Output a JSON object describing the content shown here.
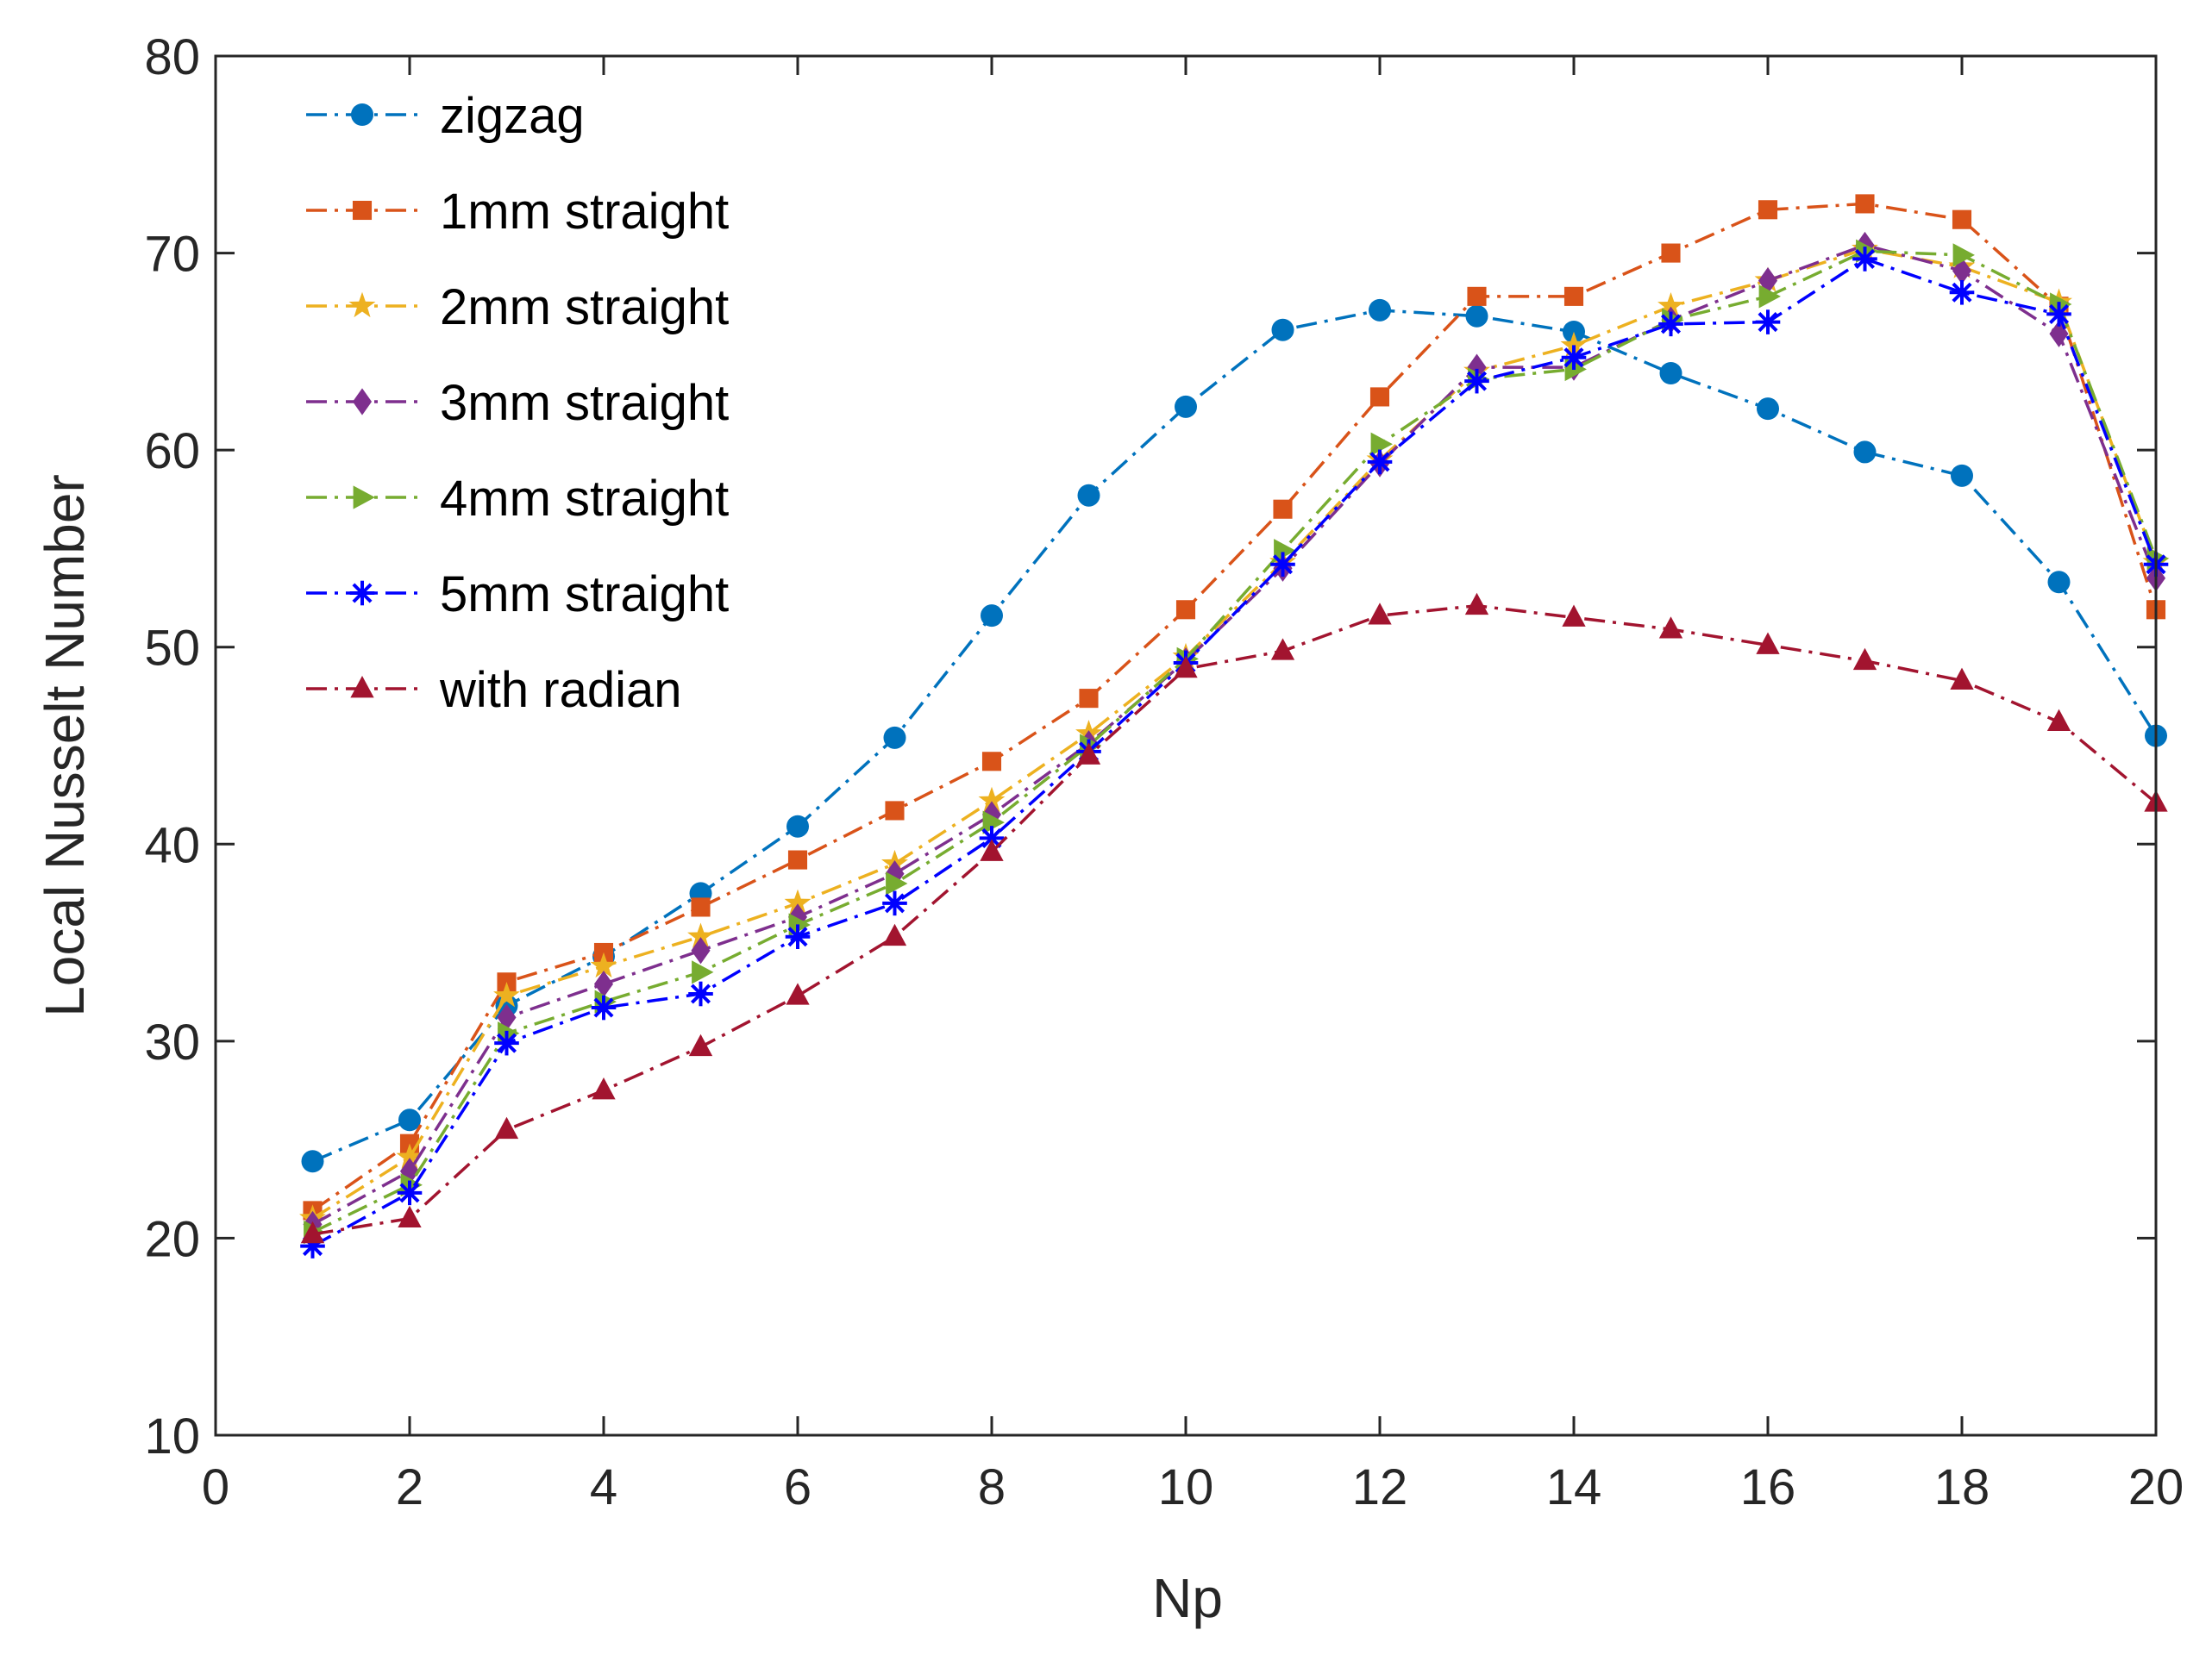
{
  "chart_data": {
    "type": "line",
    "title": "",
    "xlabel": "Np",
    "ylabel": "Local Nusselt Number",
    "xlim": [
      0,
      20
    ],
    "ylim": [
      10,
      80
    ],
    "xticks": [
      0,
      2,
      4,
      6,
      8,
      10,
      12,
      14,
      16,
      18,
      20
    ],
    "yticks": [
      10,
      20,
      30,
      40,
      50,
      60,
      70,
      80
    ],
    "grid": false,
    "legend_position": "top-left",
    "x": [
      1,
      2,
      3,
      4,
      5,
      6,
      7,
      8,
      9,
      10,
      11,
      12,
      13,
      14,
      15,
      16,
      17,
      18,
      19,
      20
    ],
    "series": [
      {
        "name": "zigzag",
        "color": "#0072BD",
        "marker": "circle",
        "values": [
          23.9,
          26.0,
          31.8,
          34.3,
          37.5,
          40.9,
          45.4,
          51.6,
          57.7,
          62.2,
          66.1,
          67.1,
          66.8,
          66.0,
          63.9,
          62.1,
          59.9,
          58.7,
          53.3,
          45.5
        ]
      },
      {
        "name": "1mm straight",
        "color": "#D95319",
        "marker": "square",
        "values": [
          21.4,
          24.8,
          33.0,
          34.5,
          36.8,
          39.2,
          41.7,
          44.2,
          47.4,
          51.9,
          57.0,
          62.7,
          67.8,
          67.8,
          70.0,
          72.2,
          72.5,
          71.7,
          67.3,
          51.9
        ]
      },
      {
        "name": "2mm straight",
        "color": "#EDB120",
        "marker": "star",
        "values": [
          21.0,
          24.1,
          32.3,
          33.8,
          35.3,
          37.0,
          39.0,
          42.2,
          45.6,
          49.5,
          54.3,
          59.5,
          64.0,
          65.3,
          67.3,
          68.6,
          70.2,
          69.3,
          67.5,
          54.3
        ]
      },
      {
        "name": "3mm straight",
        "color": "#7E2F8E",
        "marker": "diamond",
        "values": [
          20.7,
          23.4,
          31.2,
          32.9,
          34.6,
          36.3,
          38.5,
          41.5,
          45.1,
          49.3,
          54.0,
          59.3,
          64.2,
          64.2,
          66.6,
          68.6,
          70.4,
          69.1,
          65.9,
          53.5
        ]
      },
      {
        "name": "4mm straight",
        "color": "#77AC30",
        "marker": "triangle-right",
        "values": [
          20.3,
          22.7,
          30.4,
          32.0,
          33.5,
          35.9,
          38.0,
          41.1,
          45.0,
          49.4,
          54.9,
          60.3,
          63.6,
          64.1,
          66.6,
          67.8,
          70.1,
          69.9,
          67.4,
          54.5
        ]
      },
      {
        "name": "5mm straight",
        "color": "#0000FF",
        "marker": "asterisk",
        "values": [
          19.6,
          22.3,
          29.9,
          31.7,
          32.4,
          35.3,
          37.0,
          40.3,
          44.7,
          49.2,
          54.2,
          59.4,
          63.5,
          64.7,
          66.4,
          66.5,
          69.7,
          68.0,
          66.9,
          54.2
        ]
      },
      {
        "name": "with radian",
        "color": "#A2142F",
        "marker": "triangle-up",
        "values": [
          20.2,
          21.0,
          25.5,
          27.5,
          29.7,
          32.3,
          35.3,
          39.6,
          44.5,
          48.9,
          49.8,
          51.6,
          52.1,
          51.5,
          50.9,
          50.1,
          49.3,
          48.3,
          46.2,
          42.1
        ]
      }
    ]
  }
}
